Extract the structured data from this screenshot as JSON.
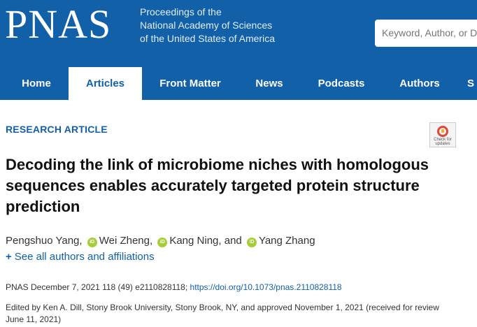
{
  "header": {
    "logo": "PNAS",
    "tagline_lines": [
      "Proceedings of the",
      "National Academy of Sciences",
      "of the United States of America"
    ],
    "search_placeholder": "Keyword, Author, or DOI"
  },
  "nav": {
    "items": [
      {
        "label": "Home"
      },
      {
        "label": "Articles",
        "active": true
      },
      {
        "label": "Front Matter"
      },
      {
        "label": "News"
      },
      {
        "label": "Podcasts"
      },
      {
        "label": "Authors"
      },
      {
        "label": "S"
      }
    ]
  },
  "article": {
    "type": "RESEARCH ARTICLE",
    "check_updates": "Check for updates",
    "title": "Decoding the link of microbiome niches with homologous sequences enables accurately targeted protein structure prediction",
    "authors": [
      {
        "name": "Pengshuo Yang",
        "sep": ","
      },
      {
        "name": "Wei Zheng",
        "sep": ","
      },
      {
        "name": "Kang Ning",
        "sep": ", and"
      },
      {
        "name": "Yang Zhang",
        "sep": ""
      }
    ],
    "see_all": "See all authors and affiliations",
    "citation_text": "PNAS December 7, 2021 118 (49) e2110828118;",
    "doi": "https://doi.org/10.1073/pnas.2110828118",
    "edited_by": "Edited by Ken A. Dill, Stony Brook University, Stony Brook, NY, and approved November 1, 2021 (received for review June 11, 2021)"
  },
  "colors": {
    "brand": "#1160a8",
    "orcid": "#a6ce39"
  }
}
